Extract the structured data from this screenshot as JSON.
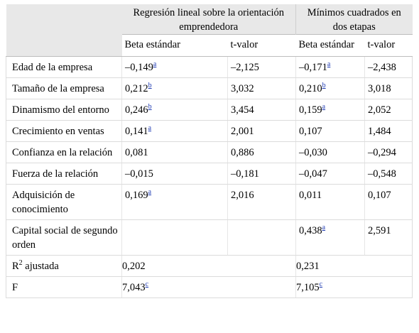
{
  "header": {
    "group1": "Regresión lineal sobre la orientación emprendedora",
    "group2": "Mínimos cuadrados en dos etapas",
    "sub": [
      "Beta estándar",
      "t-valor",
      "Beta estándar",
      "t-valor"
    ]
  },
  "rows": [
    {
      "label": "Edad de la empresa",
      "b1": "–0,149",
      "s1": "a",
      "t1": "–2,125",
      "b2": "–0,171",
      "s2": "a",
      "t2": "–2,438"
    },
    {
      "label": "Tamaño de la empresa",
      "b1": "0,212",
      "s1": "b",
      "t1": "3,032",
      "b2": "0,210",
      "s2": "b",
      "t2": "3,018"
    },
    {
      "label": "Dinamismo del entorno",
      "b1": "0,246",
      "s1": "b",
      "t1": "3,454",
      "b2": "0,159",
      "s2": "a",
      "t2": "2,052"
    },
    {
      "label": "Crecimiento en ventas",
      "b1": "0,141",
      "s1": "a",
      "t1": "2,001",
      "b2": "0,107",
      "s2": "",
      "t2": "1,484"
    },
    {
      "label": "Confianza en la relación",
      "b1": "0,081",
      "s1": "",
      "t1": "0,886",
      "b2": "–0,030",
      "s2": "",
      "t2": "–0,294"
    },
    {
      "label": "Fuerza de la relación",
      "b1": "–0,015",
      "s1": "",
      "t1": "–0,181",
      "b2": "–0,047",
      "s2": "",
      "t2": "–0,548"
    },
    {
      "label": "Adquisición de conocimiento",
      "b1": "0,169",
      "s1": "a",
      "t1": "2,016",
      "b2": "0,011",
      "s2": "",
      "t2": "0,107"
    },
    {
      "label": "Capital social de segundo orden",
      "b1": "",
      "s1": "",
      "t1": "",
      "b2": "0,438",
      "s2": "a",
      "t2": "2,591"
    }
  ],
  "summary": [
    {
      "label": "R",
      "label_sup": "2",
      "label_rest": " ajustada",
      "v1": "0,202",
      "s1": "",
      "v2": "0,231",
      "s2": ""
    },
    {
      "label": "F",
      "label_sup": "",
      "label_rest": "",
      "v1": "7,043",
      "s1": "c",
      "v2": "7,105",
      "s2": "c"
    }
  ]
}
